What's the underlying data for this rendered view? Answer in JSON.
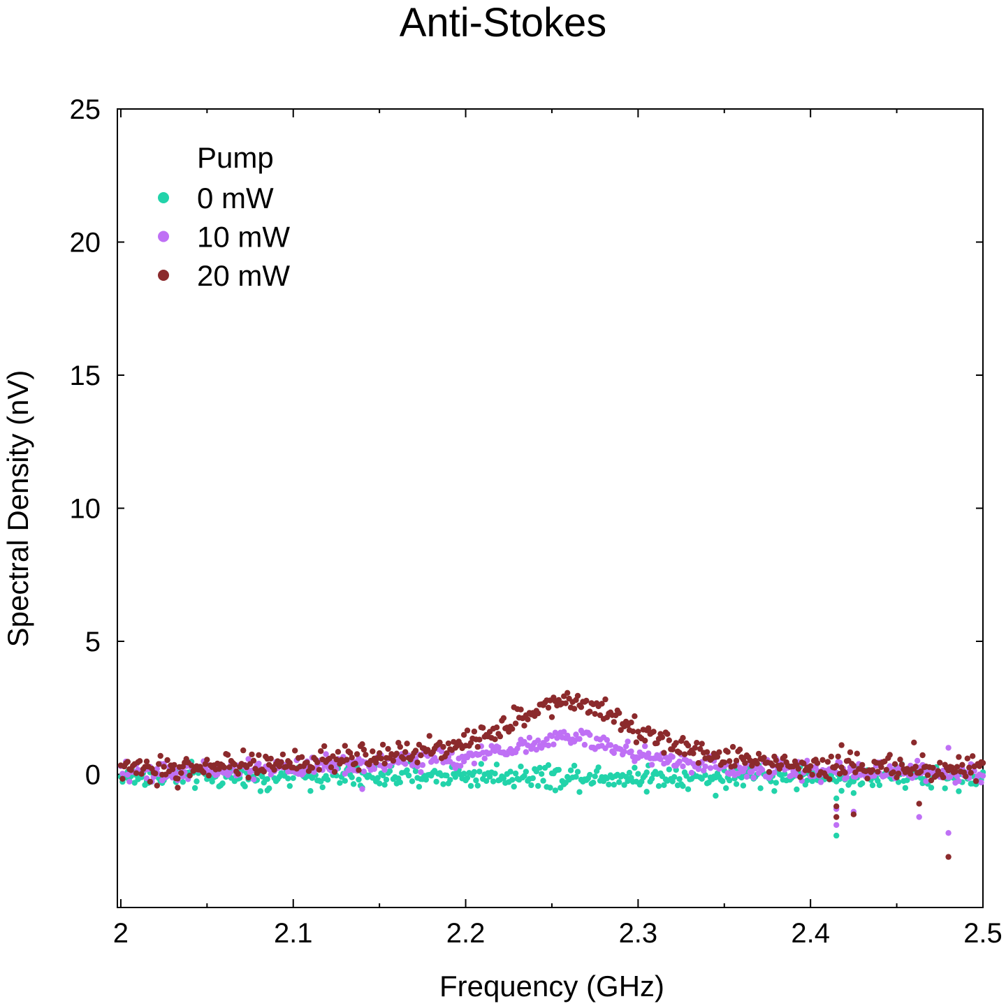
{
  "chart_data": {
    "type": "scatter",
    "title": "Anti-Stokes",
    "xlabel": "Frequency (GHz)",
    "ylabel": "Spectral Density (nV)",
    "xlim": [
      1.998,
      2.5
    ],
    "ylim": [
      -5,
      25
    ],
    "xticks": [
      2.0,
      2.1,
      2.2,
      2.3,
      2.4,
      2.5
    ],
    "xtick_labels": [
      "2",
      "2.1",
      "2.2",
      "2.3",
      "2.4",
      "2.5"
    ],
    "yticks": [
      0,
      5,
      10,
      15,
      20,
      25
    ],
    "ytick_labels": [
      "0",
      "5",
      "10",
      "15",
      "20",
      "25"
    ],
    "grid": false,
    "legend": {
      "title": "Pump",
      "position": "top-left"
    },
    "x_points": {
      "start": 2.0,
      "end": 2.5,
      "count": 501
    },
    "series": [
      {
        "name": "0 mW",
        "color": "#22d3aa",
        "baseline": -0.1,
        "noise": 0.22,
        "peak": {
          "center": 2.26,
          "width": 0.045,
          "amplitude": 0.0
        },
        "outliers": [
          [
            2.415,
            -2.3
          ],
          [
            2.415,
            -0.9
          ],
          [
            2.425,
            -0.7
          ],
          [
            2.345,
            -0.8
          ],
          [
            2.252,
            -0.6
          ],
          [
            2.305,
            -0.65
          ],
          [
            2.085,
            -0.6
          ],
          [
            2.14,
            -0.5
          ]
        ]
      },
      {
        "name": "10 mW",
        "color": "#bf70f5",
        "baseline": 0.05,
        "noise": 0.18,
        "peak": {
          "center": 2.262,
          "width": 0.04,
          "amplitude": 1.1
        },
        "outliers": [
          [
            2.415,
            -1.9
          ],
          [
            2.415,
            -1.3
          ],
          [
            2.425,
            -1.4
          ],
          [
            2.463,
            -1.6
          ],
          [
            2.48,
            -2.2
          ],
          [
            2.48,
            1.0
          ],
          [
            2.14,
            -0.55
          ]
        ]
      },
      {
        "name": "20 mW",
        "color": "#8b2a2c",
        "baseline": 0.1,
        "noise": 0.22,
        "peak": {
          "center": 2.262,
          "width": 0.045,
          "amplitude": 2.5
        },
        "outliers": [
          [
            2.415,
            -1.6
          ],
          [
            2.415,
            -1.2
          ],
          [
            2.425,
            -1.5
          ],
          [
            2.463,
            -1.1
          ],
          [
            2.48,
            -3.1
          ],
          [
            2.46,
            1.2
          ],
          [
            2.418,
            1.1
          ],
          [
            2.033,
            -0.5
          ]
        ]
      }
    ]
  }
}
